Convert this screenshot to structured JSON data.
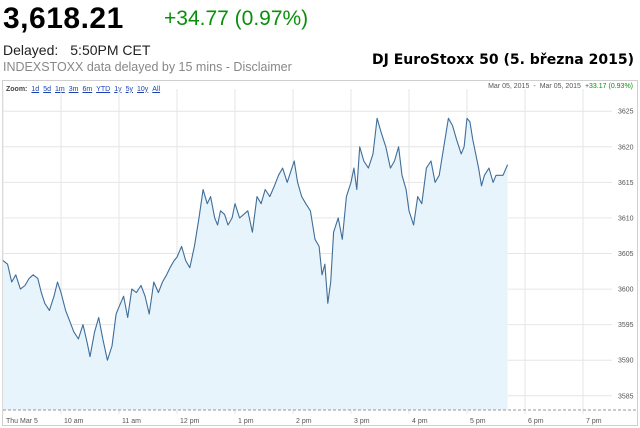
{
  "quote": {
    "price": "3,618.21",
    "change": "+34.77 (0.97%)",
    "delayed_label": "Delayed:",
    "delayed_time": "5:50PM CET",
    "disclaimer": "INDEXSTOXX data delayed by 15 mins - Disclaimer"
  },
  "chart_controls": {
    "zoom_label": "Zoom:",
    "zoom_options": [
      "1d",
      "5d",
      "1m",
      "3m",
      "6m",
      "YTD",
      "1y",
      "5y",
      "10y",
      "All"
    ],
    "range_start": "Mar 05, 2015",
    "range_sep": "-",
    "range_end": "Mar 05, 2015",
    "range_change": "+33.17 (0.93%)"
  },
  "colors": {
    "line": "#3f6e9a",
    "fill": "#e8f4fc",
    "grid": "#e6e6e6",
    "positive": "#0a8f0a"
  },
  "chart_data": {
    "type": "area",
    "title": "DJ EuroStoxx 50 (5. března 2015)",
    "xlabel": "",
    "ylabel": "",
    "x_ticks": [
      "Thu Mar 5",
      "10 am",
      "11 am",
      "12 pm",
      "1 pm",
      "2 pm",
      "3 pm",
      "4 pm",
      "5 pm",
      "6 pm",
      "7 pm"
    ],
    "y_ticks": [
      3585,
      3590,
      3595,
      3600,
      3605,
      3610,
      3615,
      3620,
      3625
    ],
    "ylim": [
      3583,
      3627
    ],
    "xlim": [
      9.0,
      19.5
    ],
    "grid": true,
    "series": [
      {
        "x": [
          9.0,
          9.08,
          9.15,
          9.22,
          9.3,
          9.38,
          9.45,
          9.52,
          9.6,
          9.66,
          9.72,
          9.8,
          9.88,
          9.94,
          10.0,
          10.08,
          10.15,
          10.22,
          10.3,
          10.38,
          10.45,
          10.5,
          10.58,
          10.65,
          10.72,
          10.8,
          10.88,
          10.95,
          11.0,
          11.08,
          11.15,
          11.22,
          11.3,
          11.38,
          11.45,
          11.52,
          11.6,
          11.68,
          11.75,
          11.82,
          11.88,
          11.95,
          12.0,
          12.08,
          12.15,
          12.22,
          12.3,
          12.38,
          12.45,
          12.52,
          12.58,
          12.65,
          12.7,
          12.75,
          12.82,
          12.88,
          12.95,
          13.0,
          13.08,
          13.15,
          13.22,
          13.3,
          13.38,
          13.45,
          13.52,
          13.6,
          13.68,
          13.75,
          13.82,
          13.9,
          13.96,
          14.02,
          14.08,
          14.15,
          14.22,
          14.3,
          14.38,
          14.45,
          14.5,
          14.55,
          14.6,
          14.65,
          14.7,
          14.78,
          14.85,
          14.92,
          15.0,
          15.05,
          15.1,
          15.15,
          15.22,
          15.3,
          15.38,
          15.45,
          15.52,
          15.6,
          15.68,
          15.75,
          15.82,
          15.88,
          15.95,
          16.0,
          16.08,
          16.15,
          16.22,
          16.3,
          16.38,
          16.45,
          16.52,
          16.6,
          16.68,
          16.75,
          16.82,
          16.9,
          16.95,
          17.0,
          17.05,
          17.1,
          17.15,
          17.2,
          17.25,
          17.3,
          17.38,
          17.45,
          17.5,
          17.55,
          17.62,
          17.7
        ],
        "y": [
          3604,
          3603.5,
          3601,
          3602,
          3600,
          3600.5,
          3601.5,
          3602,
          3601.5,
          3599.5,
          3598,
          3597,
          3599,
          3601,
          3599.5,
          3597,
          3595.5,
          3594,
          3593,
          3595,
          3592.5,
          3590.5,
          3594,
          3596,
          3593,
          3590,
          3592,
          3596.5,
          3597.5,
          3599,
          3596,
          3600,
          3599.5,
          3600.5,
          3599,
          3596.5,
          3601,
          3599.5,
          3601,
          3602,
          3603,
          3604,
          3604.5,
          3606,
          3604,
          3603,
          3606,
          3610,
          3614,
          3612,
          3613,
          3610,
          3609,
          3611,
          3610.5,
          3609,
          3610,
          3612,
          3610,
          3610.5,
          3611,
          3608,
          3613,
          3612,
          3614,
          3613,
          3614.5,
          3616,
          3617,
          3615,
          3616.5,
          3618,
          3615,
          3613,
          3612,
          3611,
          3607,
          3606,
          3602,
          3603.5,
          3598,
          3601,
          3608,
          3610,
          3607,
          3613,
          3615,
          3617,
          3614,
          3620,
          3618,
          3617,
          3619,
          3624,
          3622,
          3620,
          3617,
          3618,
          3620,
          3616,
          3614,
          3611,
          3609,
          3613,
          3612,
          3617,
          3618,
          3615,
          3616,
          3620,
          3624,
          3623,
          3621,
          3619,
          3620,
          3624,
          3623.5,
          3621,
          3619,
          3617,
          3614.5,
          3616,
          3617,
          3615,
          3616,
          3616,
          3616,
          3617.5
        ]
      }
    ]
  }
}
